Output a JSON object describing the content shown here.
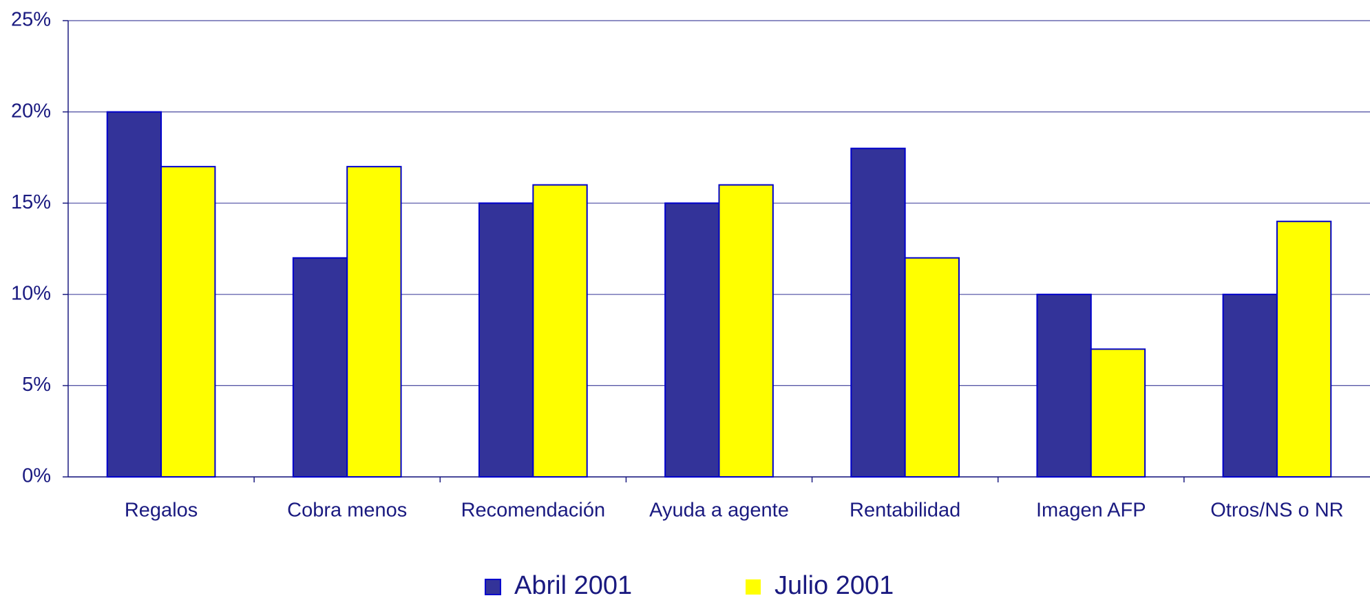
{
  "chart_data": {
    "type": "bar",
    "categories": [
      "Regalos",
      "Cobra menos",
      "Recomendación",
      "Ayuda a agente",
      "Rentabilidad",
      "Imagen AFP",
      "Otros/NS o NR"
    ],
    "series": [
      {
        "name": "Abril 2001",
        "color": "#333399",
        "values": [
          20,
          12,
          15,
          15,
          18,
          10,
          10
        ]
      },
      {
        "name": "Julio 2001",
        "color": "#ffff00",
        "values": [
          17,
          17,
          16,
          16,
          12,
          7,
          14
        ]
      }
    ],
    "ylim": [
      0,
      25
    ],
    "yticks": [
      {
        "value": 0,
        "label": "0%"
      },
      {
        "value": 5,
        "label": "5%"
      },
      {
        "value": 10,
        "label": "10%"
      },
      {
        "value": 15,
        "label": "15%"
      },
      {
        "value": 20,
        "label": "20%"
      },
      {
        "value": 25,
        "label": "25%"
      }
    ],
    "grid": true,
    "legend": "bottom"
  }
}
